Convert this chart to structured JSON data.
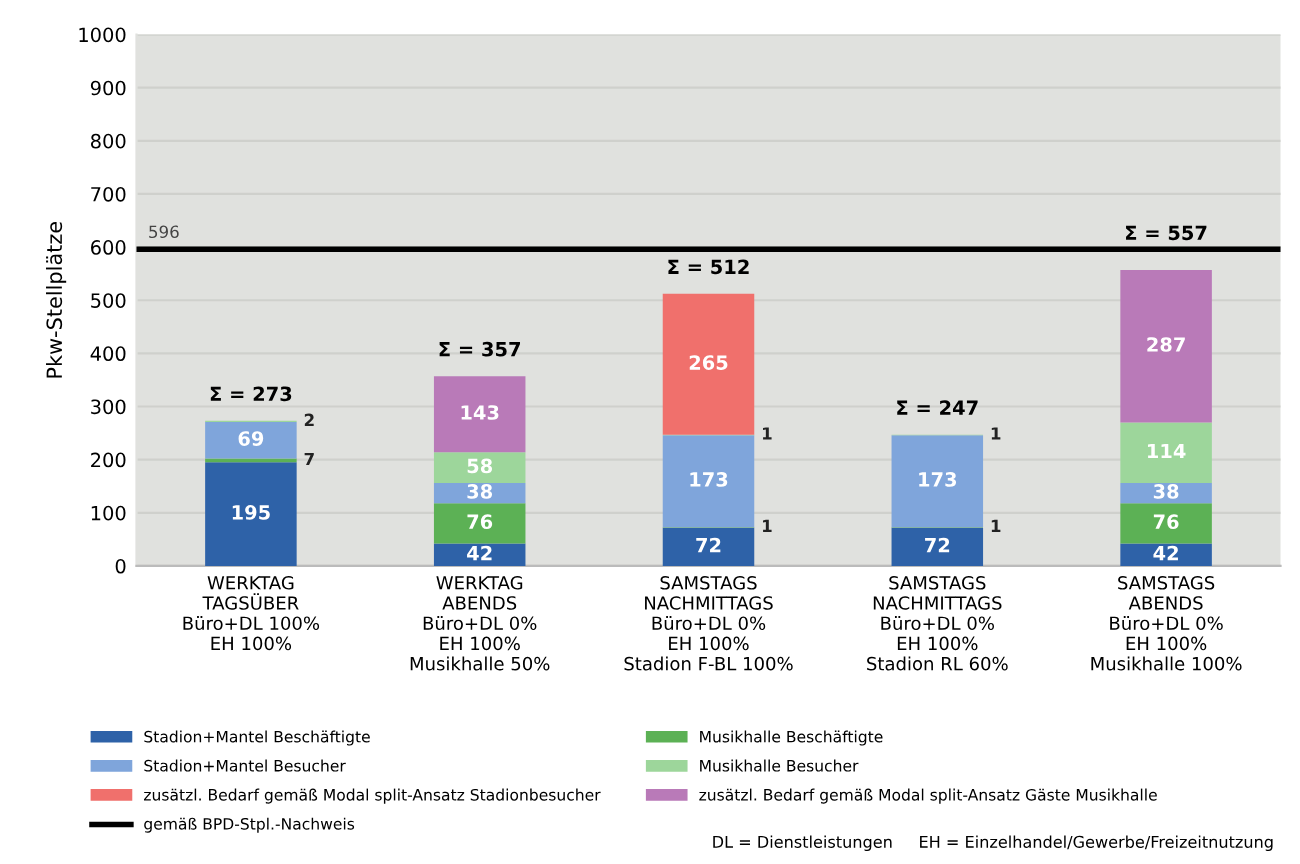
{
  "chart_data": {
    "type": "bar",
    "stacked": true,
    "ylabel": "Pkw-Stellplätze",
    "categories": [
      "WERKTAG\nTAGSÜBER\nBüro+DL 100%\nEH 100%",
      "WERKTAG\nABENDS\nBüro+DL 0%\nEH 100%\nMusikhalle 50%",
      "SAMSTAGS\nNACHMITTAGS\nBüro+DL 0%\nEH 100%\nStadion F-BL 100%",
      "SAMSTAGS\nNACHMITTAGS\nBüro+DL 0%\nEH 100%\nStadion RL 60%",
      "SAMSTAGS\nABENDS\nBüro+DL 0%\nEH 100%\nMusikhalle 100%"
    ],
    "series": [
      {
        "name": "Stadion+Mantel Beschäftigte",
        "color": "#2e62a8",
        "values": [
          195,
          42,
          72,
          72,
          42
        ]
      },
      {
        "name": "Musikhalle Beschäftigte",
        "color": "#5cb155",
        "values": [
          7,
          76,
          1,
          1,
          76
        ]
      },
      {
        "name": "Stadion+Mantel Besucher",
        "color": "#7fa5db",
        "values": [
          69,
          38,
          173,
          173,
          38
        ]
      },
      {
        "name": "Musikhalle Besucher",
        "color": "#9dd69b",
        "values": [
          2,
          58,
          1,
          1,
          114
        ]
      },
      {
        "name": "zusätzl. Bedarf gemäß Modal split-Ansatz Stadionbesucher",
        "color": "#f0706c",
        "values": [
          null,
          null,
          265,
          null,
          null
        ]
      },
      {
        "name": "zusätzl. Bedarf gemäß Modal split-Ansatz Gäste Musikhalle",
        "color": "#b97ab8",
        "values": [
          null,
          143,
          null,
          null,
          287
        ]
      }
    ],
    "data_labels": true,
    "totals": [
      "Σ = 273",
      "Σ = 357",
      "Σ = 512",
      "Σ = 247",
      "Σ = 557"
    ],
    "ylim": [
      0,
      1000
    ],
    "yticks": [
      0,
      100,
      200,
      300,
      400,
      500,
      600,
      700,
      800,
      900,
      1000
    ],
    "ref_lines": [
      {
        "axis": "y",
        "value": 596,
        "label": "596",
        "color": "#000000",
        "line_style": "solid"
      }
    ],
    "annotations": [
      "gemäß BPD-Stpl.-Nachweis",
      "DL = Dienstleistungen     EH = Einzelhandel/Gewerbe/Freizeitnutzung"
    ],
    "grid": "y",
    "legend": "bottom"
  }
}
